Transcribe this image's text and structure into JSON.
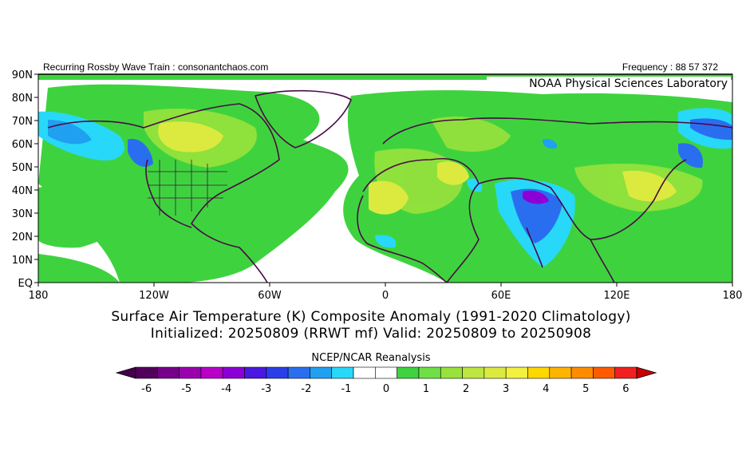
{
  "header": {
    "left": "Recurring Rossby Wave Train : consonantchaos.com",
    "right": "Frequency : 88 57 372",
    "lab": "NOAA Physical Sciences Laboratory"
  },
  "map": {
    "lat_labels": [
      "90N",
      "80N",
      "70N",
      "60N",
      "50N",
      "40N",
      "30N",
      "20N",
      "10N",
      "EQ"
    ],
    "lon_labels": [
      "180",
      "120W",
      "60W",
      "0",
      "60E",
      "120E",
      "180"
    ],
    "extent": {
      "lon": [
        -180,
        180
      ],
      "lat": [
        0,
        90
      ]
    }
  },
  "caption": {
    "line1": "Surface Air Temperature (K) Composite Anomaly (1991-2020 Climatology)",
    "line2": "Initialized: 20250809 (RRWT mf) Valid: 20250809 to 20250908"
  },
  "colorbar": {
    "title": "NCEP/NCAR Reanalysis",
    "colors": [
      "#52005c",
      "#76008a",
      "#9a00ae",
      "#b800c8",
      "#8c00d8",
      "#4a18e0",
      "#2a3ee8",
      "#2a6ef0",
      "#20a0f0",
      "#28d8f8",
      "#ffffff",
      "#ffffff",
      "#3ed33e",
      "#6ee046",
      "#98e23c",
      "#bee640",
      "#dcea40",
      "#f4f040",
      "#ffd800",
      "#ffb400",
      "#ff8c00",
      "#ff5a00",
      "#f02020"
    ],
    "tick_labels": [
      "-6",
      "-5",
      "-4",
      "-3",
      "-2",
      "-1",
      "0",
      "1",
      "2",
      "3",
      "4",
      "5",
      "6"
    ],
    "under": "#44004a",
    "over": "#c80000"
  }
}
